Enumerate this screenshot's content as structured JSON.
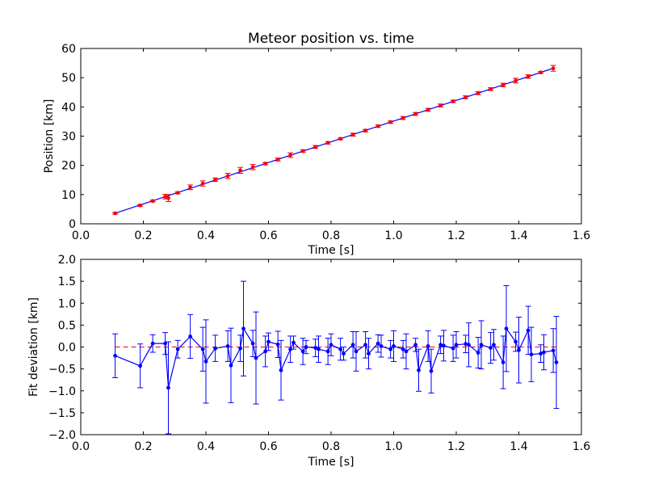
{
  "colors": {
    "data_line": "#0000ff",
    "top_marker": "#ff0000",
    "zero_line": "#ff0000",
    "axes": "#000000",
    "background": "#ffffff"
  },
  "chart_data": [
    {
      "type": "line",
      "title": "Meteor position vs. time",
      "xlabel": "Time [s]",
      "ylabel": "Position [km]",
      "xlim": [
        0.0,
        1.6
      ],
      "ylim": [
        0,
        60
      ],
      "xticks": [
        "0.0",
        "0.2",
        "0.4",
        "0.6",
        "0.8",
        "1.0",
        "1.2",
        "1.4",
        "1.6"
      ],
      "yticks": [
        "0",
        "10",
        "20",
        "30",
        "40",
        "50",
        "60"
      ],
      "grid": false,
      "series": [
        {
          "x": [
            0.11,
            0.19,
            0.23,
            0.27,
            0.28,
            0.31,
            0.35,
            0.39,
            0.43,
            0.47,
            0.51,
            0.55,
            0.59,
            0.63,
            0.67,
            0.71,
            0.75,
            0.79,
            0.83,
            0.87,
            0.91,
            0.95,
            0.99,
            1.03,
            1.07,
            1.11,
            1.15,
            1.19,
            1.23,
            1.27,
            1.31,
            1.35,
            1.39,
            1.43,
            1.47,
            1.51
          ],
          "y": [
            3.6,
            6.3,
            7.8,
            9.3,
            8.8,
            10.6,
            12.5,
            13.8,
            15.1,
            16.4,
            18.3,
            19.4,
            20.6,
            22.0,
            23.5,
            24.9,
            26.3,
            27.7,
            29.1,
            30.5,
            31.9,
            33.4,
            34.8,
            36.2,
            37.6,
            39.0,
            40.5,
            41.9,
            43.3,
            44.7,
            46.1,
            47.5,
            49.0,
            50.4,
            51.8,
            53.2
          ],
          "yerr": [
            0.3,
            0.3,
            0.3,
            0.8,
            1.2,
            0.3,
            0.8,
            0.9,
            0.6,
            0.9,
            1.0,
            0.9,
            0.4,
            0.5,
            0.8,
            0.4,
            0.5,
            0.4,
            0.3,
            0.5,
            0.4,
            0.4,
            0.4,
            0.5,
            0.5,
            0.5,
            0.5,
            0.4,
            0.5,
            0.5,
            0.5,
            0.6,
            0.8,
            0.6,
            0.3,
            1.0
          ]
        }
      ]
    },
    {
      "type": "line",
      "title": "",
      "xlabel": "Time [s]",
      "ylabel": "Fit deviation [km]",
      "xlim": [
        0.0,
        1.6
      ],
      "ylim": [
        -2.0,
        2.0
      ],
      "xticks": [
        "0.0",
        "0.2",
        "0.4",
        "0.6",
        "0.8",
        "1.0",
        "1.2",
        "1.4",
        "1.6"
      ],
      "yticks": [
        "−2.0",
        "−1.5",
        "−1.0",
        "−0.5",
        "0.0",
        "0.5",
        "1.0",
        "1.5",
        "2.0"
      ],
      "grid": false,
      "reference_line": {
        "y": 0,
        "style": "dashed"
      },
      "series": [
        {
          "x": [
            0.11,
            0.19,
            0.23,
            0.27,
            0.28,
            0.31,
            0.35,
            0.39,
            0.4,
            0.43,
            0.47,
            0.48,
            0.51,
            0.52,
            0.55,
            0.56,
            0.59,
            0.6,
            0.63,
            0.64,
            0.67,
            0.68,
            0.71,
            0.72,
            0.75,
            0.76,
            0.79,
            0.8,
            0.83,
            0.84,
            0.87,
            0.88,
            0.91,
            0.92,
            0.95,
            0.96,
            0.99,
            1.0,
            1.03,
            1.04,
            1.07,
            1.08,
            1.11,
            1.12,
            1.15,
            1.16,
            1.19,
            1.2,
            1.23,
            1.24,
            1.27,
            1.28,
            1.31,
            1.32,
            1.35,
            1.36,
            1.39,
            1.4,
            1.43,
            1.44,
            1.47,
            1.48,
            1.51,
            1.52
          ],
          "y": [
            -0.2,
            -0.43,
            0.08,
            0.08,
            -0.93,
            -0.05,
            0.24,
            -0.05,
            -0.33,
            -0.03,
            0.02,
            -0.42,
            -0.03,
            0.42,
            0.08,
            -0.25,
            -0.1,
            0.12,
            0.06,
            -0.53,
            -0.05,
            0.1,
            -0.1,
            0.0,
            -0.02,
            -0.05,
            -0.1,
            0.05,
            -0.05,
            -0.15,
            0.05,
            -0.1,
            0.05,
            -0.15,
            0.08,
            0.02,
            -0.05,
            0.02,
            -0.05,
            -0.1,
            0.05,
            -0.53,
            0.02,
            -0.55,
            0.05,
            0.03,
            -0.03,
            0.05,
            0.07,
            0.05,
            -0.13,
            0.05,
            -0.02,
            0.05,
            -0.35,
            0.42,
            0.12,
            -0.07,
            0.38,
            -0.17,
            -0.15,
            -0.12,
            -0.08,
            -0.35
          ],
          "yerr": [
            0.5,
            0.5,
            0.2,
            0.25,
            1.05,
            0.2,
            0.5,
            0.5,
            0.95,
            0.3,
            0.35,
            0.85,
            0.3,
            1.08,
            0.3,
            1.05,
            0.35,
            0.2,
            0.3,
            0.68,
            0.3,
            0.15,
            0.3,
            0.15,
            0.2,
            0.3,
            0.3,
            0.25,
            0.25,
            0.15,
            0.3,
            0.45,
            0.3,
            0.35,
            0.2,
            0.25,
            0.2,
            0.35,
            0.2,
            0.4,
            0.15,
            0.48,
            0.35,
            0.5,
            0.2,
            0.35,
            0.3,
            0.3,
            0.2,
            0.5,
            0.35,
            0.55,
            0.35,
            0.35,
            0.6,
            0.98,
            0.22,
            0.75,
            0.55,
            0.62,
            0.2,
            0.4,
            0.5,
            1.05
          ]
        }
      ]
    }
  ]
}
